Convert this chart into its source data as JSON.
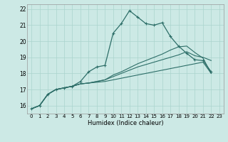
{
  "xlabel": "Humidex (Indice chaleur)",
  "bg_color": "#cce9e5",
  "grid_color": "#aad4ce",
  "line_color": "#2d6e68",
  "xlim": [
    -0.5,
    23.5
  ],
  "ylim": [
    15.5,
    22.3
  ],
  "xticks": [
    0,
    1,
    2,
    3,
    4,
    5,
    6,
    7,
    8,
    9,
    10,
    11,
    12,
    13,
    14,
    15,
    16,
    17,
    18,
    19,
    20,
    21,
    22,
    23
  ],
  "yticks": [
    16,
    17,
    18,
    19,
    20,
    21,
    22
  ],
  "series_marked": [
    15.8,
    16.0,
    16.7,
    17.0,
    17.1,
    17.2,
    17.5,
    18.1,
    18.4,
    18.5,
    20.5,
    21.1,
    21.9,
    21.5,
    21.1,
    21.0,
    21.15,
    20.3,
    19.7,
    19.25,
    18.85,
    18.8,
    18.1
  ],
  "series_smooth1": [
    15.8,
    16.0,
    16.7,
    17.0,
    17.1,
    17.2,
    17.35,
    17.4,
    17.45,
    17.5,
    17.6,
    17.7,
    17.8,
    17.9,
    18.0,
    18.1,
    18.2,
    18.3,
    18.4,
    18.5,
    18.6,
    18.7,
    18.0
  ],
  "series_smooth2": [
    15.8,
    16.0,
    16.7,
    17.0,
    17.1,
    17.2,
    17.35,
    17.4,
    17.5,
    17.6,
    17.8,
    18.0,
    18.2,
    18.4,
    18.55,
    18.7,
    18.85,
    19.0,
    19.15,
    19.35,
    19.1,
    19.0,
    18.8
  ],
  "series_smooth3": [
    15.8,
    16.0,
    16.7,
    17.0,
    17.1,
    17.2,
    17.35,
    17.4,
    17.5,
    17.6,
    17.9,
    18.1,
    18.35,
    18.6,
    18.8,
    19.0,
    19.2,
    19.45,
    19.65,
    19.7,
    19.3,
    18.95,
    18.0
  ]
}
